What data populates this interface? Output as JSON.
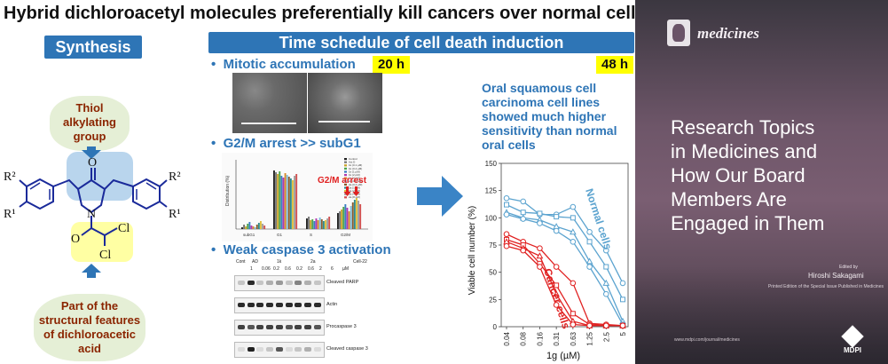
{
  "title": "Hybrid dichloroacetyl molecules preferentially kill cancers over normal cells",
  "synthesis": {
    "banner": "Synthesis",
    "top_cloud": [
      "Thiol",
      "alkylating",
      "group"
    ],
    "bottom_cloud": [
      "Part of the",
      "structural features",
      "of dichloroacetic",
      "acid"
    ],
    "labels": {
      "r2": "R²",
      "r1": "R¹",
      "o": "O",
      "n": "N",
      "cl": "Cl",
      "o2": "O"
    }
  },
  "time_schedule": {
    "banner": "Time schedule of cell death induction",
    "bullet": "•",
    "mitotic": "Mitotic accumulation",
    "t20": "20 h",
    "g2m": "G2/M arrest >> subG1",
    "g2m_inset": "G2/M arrest",
    "caspase": "Weak caspase 3 activation",
    "wb_header": [
      "Cont",
      "AD",
      "1k",
      "2a",
      "Cell-22"
    ],
    "wb_doses": [
      "1",
      "0.06",
      "0.2",
      "0.6",
      "0.2",
      "0.6",
      "2",
      "6",
      "µM"
    ],
    "wb_rows": [
      "Cleaved PARP",
      "Actin",
      "Procaspase 3",
      "Cleaved caspase 3"
    ],
    "bar_legend": [
      "Control",
      "Act D",
      "1k (0.1 µM)",
      "1k (0.4 µM)",
      "1k (1 µM)",
      "1k (2 µM)",
      "1k (4 µM)",
      "2a (0.1 µM)",
      "2a (0.4 µM)",
      "2a (1 µM)",
      "2a (2 µM)",
      "2a (4 µM)",
      "2a (8 µM)"
    ],
    "bar_cats": [
      "subG1",
      "G1",
      "S",
      "G2/M"
    ],
    "bar_ylabel": "Distribution (%)",
    "t48": "48 h",
    "oral_text": [
      "Oral squamous cell",
      "carcinoma cell lines",
      "showed much higher",
      "sensitivity than normal",
      "oral cells"
    ]
  },
  "chart_data": {
    "type": "line",
    "xlabel": "1g (µM)",
    "ylabel": "Viable cell number (%)",
    "categories": [
      "0.04",
      "0.08",
      "0.16",
      "0.31",
      "0.63",
      "1.25",
      "2.5",
      "5"
    ],
    "yticks": [
      "0",
      "25",
      "50",
      "75",
      "100",
      "125",
      "150"
    ],
    "ylim": [
      0,
      150
    ],
    "annotations": [
      "Normal cells",
      "Cancer cells"
    ],
    "colors": {
      "normal": "#5ba3cf",
      "cancer": "#e02020"
    },
    "series": [
      {
        "group": "normal",
        "values": [
          118,
          115,
          103,
          103,
          110,
          87,
          70,
          40
        ]
      },
      {
        "group": "normal",
        "values": [
          112,
          105,
          104,
          101,
          100,
          78,
          55,
          25
        ]
      },
      {
        "group": "normal",
        "values": [
          105,
          100,
          98,
          92,
          87,
          60,
          40,
          5
        ]
      },
      {
        "group": "normal",
        "values": [
          103,
          99,
          95,
          88,
          78,
          55,
          30,
          2
        ]
      },
      {
        "group": "cancer",
        "values": [
          85,
          78,
          72,
          55,
          40,
          3,
          2,
          1
        ]
      },
      {
        "group": "cancer",
        "values": [
          80,
          75,
          58,
          38,
          12,
          2,
          1,
          1
        ]
      },
      {
        "group": "cancer",
        "values": [
          78,
          72,
          65,
          30,
          5,
          1,
          1,
          1
        ]
      },
      {
        "group": "cancer",
        "values": [
          74,
          70,
          55,
          20,
          2,
          1,
          1,
          1
        ]
      }
    ]
  },
  "cover": {
    "journal": "medicines",
    "heading": [
      "Research Topics",
      "in Medicines and",
      "How Our Board",
      "Members Are",
      "Engaged in Them"
    ],
    "edited": "Edited by",
    "editor": "Hiroshi Sakagami",
    "printed": "Printed Edition of the Special Issue Published in Medicines",
    "url": "www.mdpi.com/journal/medicines",
    "publisher": "MDPI"
  }
}
